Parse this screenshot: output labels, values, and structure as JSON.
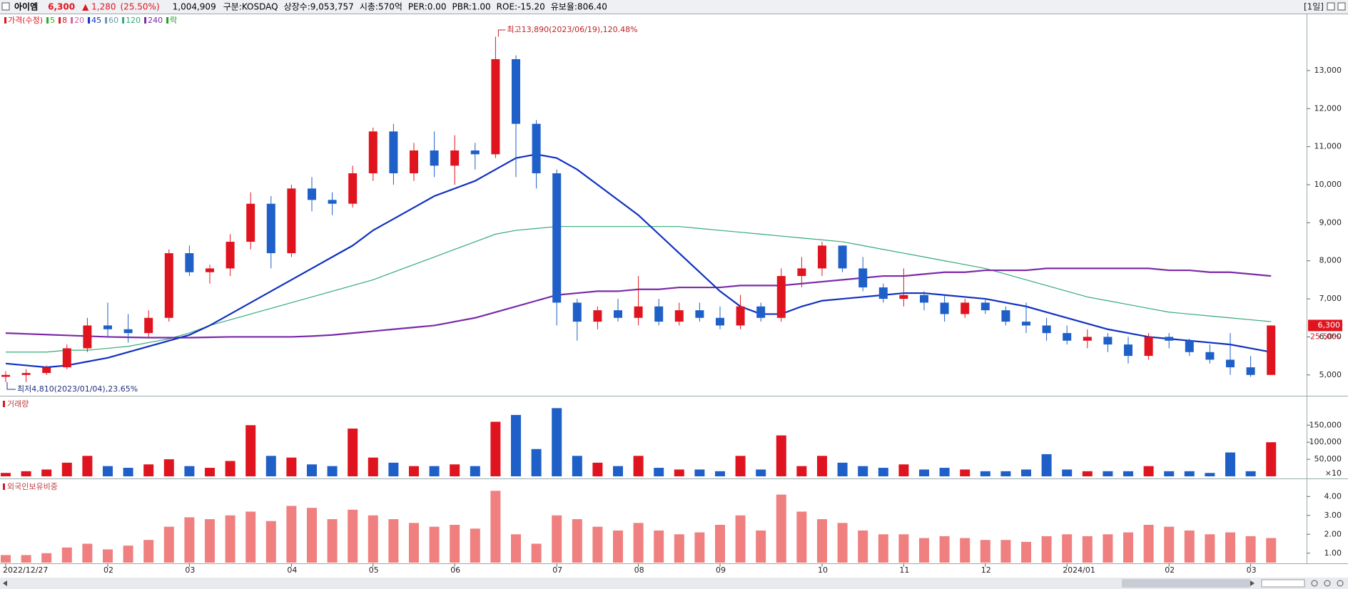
{
  "header": {
    "name": "아이엠",
    "price": "6,300",
    "change": "▲ 1,280",
    "change_pct": "(25.50%)",
    "volume": "1,004,909",
    "market": "구분:KOSDAQ",
    "shares": "상장수:9,053,757",
    "mktcap": "시총:570억",
    "per": "PER:0.00",
    "pbr": "PBR:1.00",
    "roe": "ROE:-15.20",
    "reserve": "유보율:806.40",
    "period": "[1일]"
  },
  "chart_data": [
    {
      "type": "candlestick",
      "up_color": "#e0141e",
      "down_color": "#1f5fc8",
      "legend": [
        {
          "name": "가격(수정)",
          "color": "#e0141e"
        },
        {
          "name": "5",
          "color": "#22b022"
        },
        {
          "name": "8",
          "color": "#e0141e"
        },
        {
          "name": "20",
          "color": "#cc66aa"
        },
        {
          "name": "45",
          "color": "#1030c0"
        },
        {
          "name": "60",
          "color": "#6699aa"
        },
        {
          "name": "120",
          "color": "#33aa77"
        },
        {
          "name": "240",
          "color": "#7a2aa8"
        },
        {
          "name": "락",
          "color": "#22a022"
        }
      ],
      "categories": [
        "2022/12/27",
        null,
        null,
        null,
        null,
        "02",
        null,
        null,
        null,
        "03",
        null,
        null,
        null,
        null,
        "04",
        null,
        null,
        null,
        "05",
        null,
        null,
        null,
        "06",
        null,
        null,
        null,
        null,
        "07",
        null,
        null,
        null,
        "08",
        null,
        null,
        null,
        "09",
        null,
        null,
        null,
        null,
        "10",
        null,
        null,
        null,
        "11",
        null,
        null,
        null,
        "12",
        null,
        null,
        null,
        "2024/01",
        null,
        null,
        null,
        null,
        "02",
        null,
        null,
        null,
        "03",
        null
      ],
      "open": [
        4950,
        5000,
        5050,
        5200,
        5700,
        6300,
        6200,
        6100,
        6500,
        8200,
        7700,
        7800,
        8500,
        9500,
        8200,
        9900,
        9600,
        9500,
        10300,
        11400,
        10300,
        10900,
        10500,
        10900,
        10800,
        13300,
        11600,
        10300,
        6900,
        6400,
        6700,
        6500,
        6800,
        6400,
        6700,
        6500,
        6300,
        6800,
        6500,
        7600,
        7800,
        8400,
        7800,
        7300,
        7000,
        7100,
        6900,
        6600,
        6900,
        6700,
        6400,
        6300,
        6100,
        5900,
        6000,
        5800,
        5500,
        6000,
        5900,
        5600,
        5400,
        5200,
        5000
      ],
      "high": [
        5100,
        5150,
        5250,
        5800,
        6500,
        6900,
        6600,
        6700,
        8300,
        8400,
        7900,
        8700,
        9800,
        9700,
        10000,
        10200,
        9800,
        10500,
        11500,
        11600,
        11100,
        11400,
        11300,
        11100,
        13890,
        13400,
        11700,
        10400,
        7000,
        6800,
        7000,
        7600,
        7000,
        6900,
        6900,
        6800,
        7100,
        6900,
        7800,
        8100,
        8500,
        8400,
        8100,
        7400,
        7800,
        7200,
        7100,
        7000,
        7000,
        6800,
        6900,
        6500,
        6300,
        6200,
        6100,
        6000,
        6100,
        6100,
        5950,
        5800,
        6100,
        5500,
        6300
      ],
      "low": [
        4810,
        4810,
        5000,
        5150,
        5600,
        6000,
        5850,
        6000,
        6400,
        7600,
        7400,
        7600,
        8300,
        7800,
        8100,
        9300,
        9200,
        9400,
        10100,
        10000,
        10100,
        10200,
        10000,
        10400,
        10700,
        10200,
        9900,
        6300,
        5900,
        6200,
        6400,
        6300,
        6300,
        6300,
        6400,
        6200,
        6200,
        6400,
        6400,
        7300,
        7600,
        7700,
        7200,
        6900,
        6800,
        6700,
        6400,
        6500,
        6600,
        6300,
        6100,
        5900,
        5800,
        5700,
        5600,
        5300,
        5400,
        5700,
        5500,
        5300,
        5000,
        4950,
        5000
      ],
      "close": [
        5000,
        5050,
        5200,
        5700,
        6300,
        6200,
        6100,
        6500,
        8200,
        7700,
        7800,
        8500,
        9500,
        8200,
        9900,
        9600,
        9500,
        10300,
        11400,
        10300,
        10900,
        10500,
        10900,
        10800,
        13300,
        11600,
        10300,
        6900,
        6400,
        6700,
        6500,
        6800,
        6400,
        6700,
        6500,
        6300,
        6800,
        6500,
        7600,
        7800,
        8400,
        7800,
        7300,
        7000,
        7100,
        6900,
        6600,
        6900,
        6700,
        6400,
        6300,
        6100,
        5900,
        6000,
        5800,
        5500,
        6000,
        5900,
        5600,
        5400,
        5200,
        5000,
        6300
      ],
      "series": [
        {
          "color": "#33aa77",
          "values": [
            5600,
            5600,
            5600,
            5650,
            5650,
            5700,
            5750,
            5850,
            5950,
            6100,
            6300,
            6450,
            6600,
            6750,
            6900,
            7050,
            7200,
            7350,
            7500,
            7700,
            7900,
            8100,
            8300,
            8500,
            8700,
            8800,
            8850,
            8900,
            8900,
            8900,
            8900,
            8900,
            8900,
            8900,
            8850,
            8800,
            8750,
            8700,
            8650,
            8600,
            8550,
            8500,
            8400,
            8300,
            8200,
            8100,
            8000,
            7900,
            7800,
            7650,
            7500,
            7350,
            7200,
            7050,
            6950,
            6850,
            6750,
            6650,
            6600,
            6550,
            6500,
            6450,
            6400
          ]
        },
        {
          "color": "#7a2aa8",
          "values": [
            6100,
            6080,
            6060,
            6040,
            6020,
            6000,
            5990,
            5980,
            5980,
            5980,
            5990,
            6000,
            6000,
            6000,
            6000,
            6020,
            6050,
            6100,
            6150,
            6200,
            6250,
            6300,
            6400,
            6500,
            6650,
            6800,
            6950,
            7100,
            7150,
            7200,
            7200,
            7250,
            7250,
            7300,
            7300,
            7300,
            7350,
            7350,
            7350,
            7400,
            7450,
            7500,
            7550,
            7600,
            7600,
            7650,
            7700,
            7700,
            7750,
            7750,
            7750,
            7800,
            7800,
            7800,
            7800,
            7800,
            7800,
            7750,
            7750,
            7700,
            7700,
            7650,
            7600
          ]
        },
        {
          "color": "#1030c0",
          "values": [
            5300,
            5250,
            5200,
            5250,
            5350,
            5450,
            5600,
            5750,
            5900,
            6050,
            6300,
            6600,
            6900,
            7200,
            7500,
            7800,
            8100,
            8400,
            8800,
            9100,
            9400,
            9700,
            9900,
            10100,
            10400,
            10700,
            10800,
            10700,
            10400,
            10000,
            9600,
            9200,
            8700,
            8200,
            7700,
            7200,
            6800,
            6600,
            6600,
            6800,
            6950,
            7000,
            7050,
            7100,
            7150,
            7150,
            7100,
            7050,
            7000,
            6900,
            6800,
            6650,
            6500,
            6350,
            6200,
            6100,
            6000,
            5950,
            5900,
            5850,
            5800,
            5700,
            5600
          ]
        }
      ],
      "ylim": [
        4490,
        14480
      ],
      "yticks": [
        {
          "value": 5000,
          "label": "5,000"
        },
        {
          "value": 6000,
          "label": "6,000"
        },
        {
          "value": 7000,
          "label": "7,000"
        },
        {
          "value": 8000,
          "label": "8,000"
        },
        {
          "value": 9000,
          "label": "9,000"
        },
        {
          "value": 10000,
          "label": "10,000"
        },
        {
          "value": 11000,
          "label": "11,000"
        },
        {
          "value": 12000,
          "label": "12,000"
        },
        {
          "value": 13000,
          "label": "13,000"
        }
      ],
      "high_label": "최고13,890(2023/06/19),120.48%",
      "low_label": "최저4,810(2023/01/04),23.65%",
      "last_price": {
        "value": 6300,
        "label": "6,300"
      },
      "last_change": "25.50%",
      "grid": false
    },
    {
      "type": "bar",
      "title": "거래량",
      "unit_label": "×10",
      "values": [
        10000,
        15000,
        20000,
        40000,
        60000,
        30000,
        25000,
        35000,
        50000,
        30000,
        25000,
        45000,
        150000,
        60000,
        55000,
        35000,
        30000,
        140000,
        55000,
        40000,
        30000,
        30000,
        35000,
        30000,
        160000,
        180000,
        80000,
        200000,
        60000,
        40000,
        30000,
        60000,
        25000,
        20000,
        20000,
        15000,
        60000,
        20000,
        120000,
        30000,
        60000,
        40000,
        30000,
        25000,
        35000,
        20000,
        25000,
        20000,
        15000,
        15000,
        20000,
        65000,
        20000,
        15000,
        15000,
        15000,
        30000,
        15000,
        15000,
        10000,
        70000,
        15000,
        100000
      ],
      "ylim": [
        0,
        230000
      ],
      "yticks": [
        {
          "value": 50000,
          "label": "50,000"
        },
        {
          "value": 100000,
          "label": "100,000"
        },
        {
          "value": 150000,
          "label": "150,000"
        }
      ],
      "grid": false
    },
    {
      "type": "bar",
      "title": "외국인보유비중",
      "color": "#f08080",
      "values": [
        0.9,
        0.9,
        1.0,
        1.3,
        1.5,
        1.2,
        1.4,
        1.7,
        2.4,
        2.9,
        2.8,
        3.0,
        3.2,
        2.7,
        3.5,
        3.4,
        2.8,
        3.3,
        3.0,
        2.8,
        2.6,
        2.4,
        2.5,
        2.3,
        4.3,
        2.0,
        1.5,
        3.0,
        2.8,
        2.4,
        2.2,
        2.6,
        2.2,
        2.0,
        2.1,
        2.5,
        3.0,
        2.2,
        4.1,
        3.2,
        2.8,
        2.6,
        2.2,
        2.0,
        2.0,
        1.8,
        1.9,
        1.8,
        1.7,
        1.7,
        1.6,
        1.9,
        2.0,
        1.9,
        2.0,
        2.1,
        2.5,
        2.4,
        2.2,
        2.0,
        2.1,
        1.9,
        1.8
      ],
      "ylim": [
        0.5,
        4.84
      ],
      "yticks": [
        {
          "value": 1,
          "label": "1.00"
        },
        {
          "value": 2,
          "label": "2.00"
        },
        {
          "value": 3,
          "label": "3.00"
        },
        {
          "value": 4,
          "label": "4.00"
        }
      ],
      "grid": false
    }
  ]
}
